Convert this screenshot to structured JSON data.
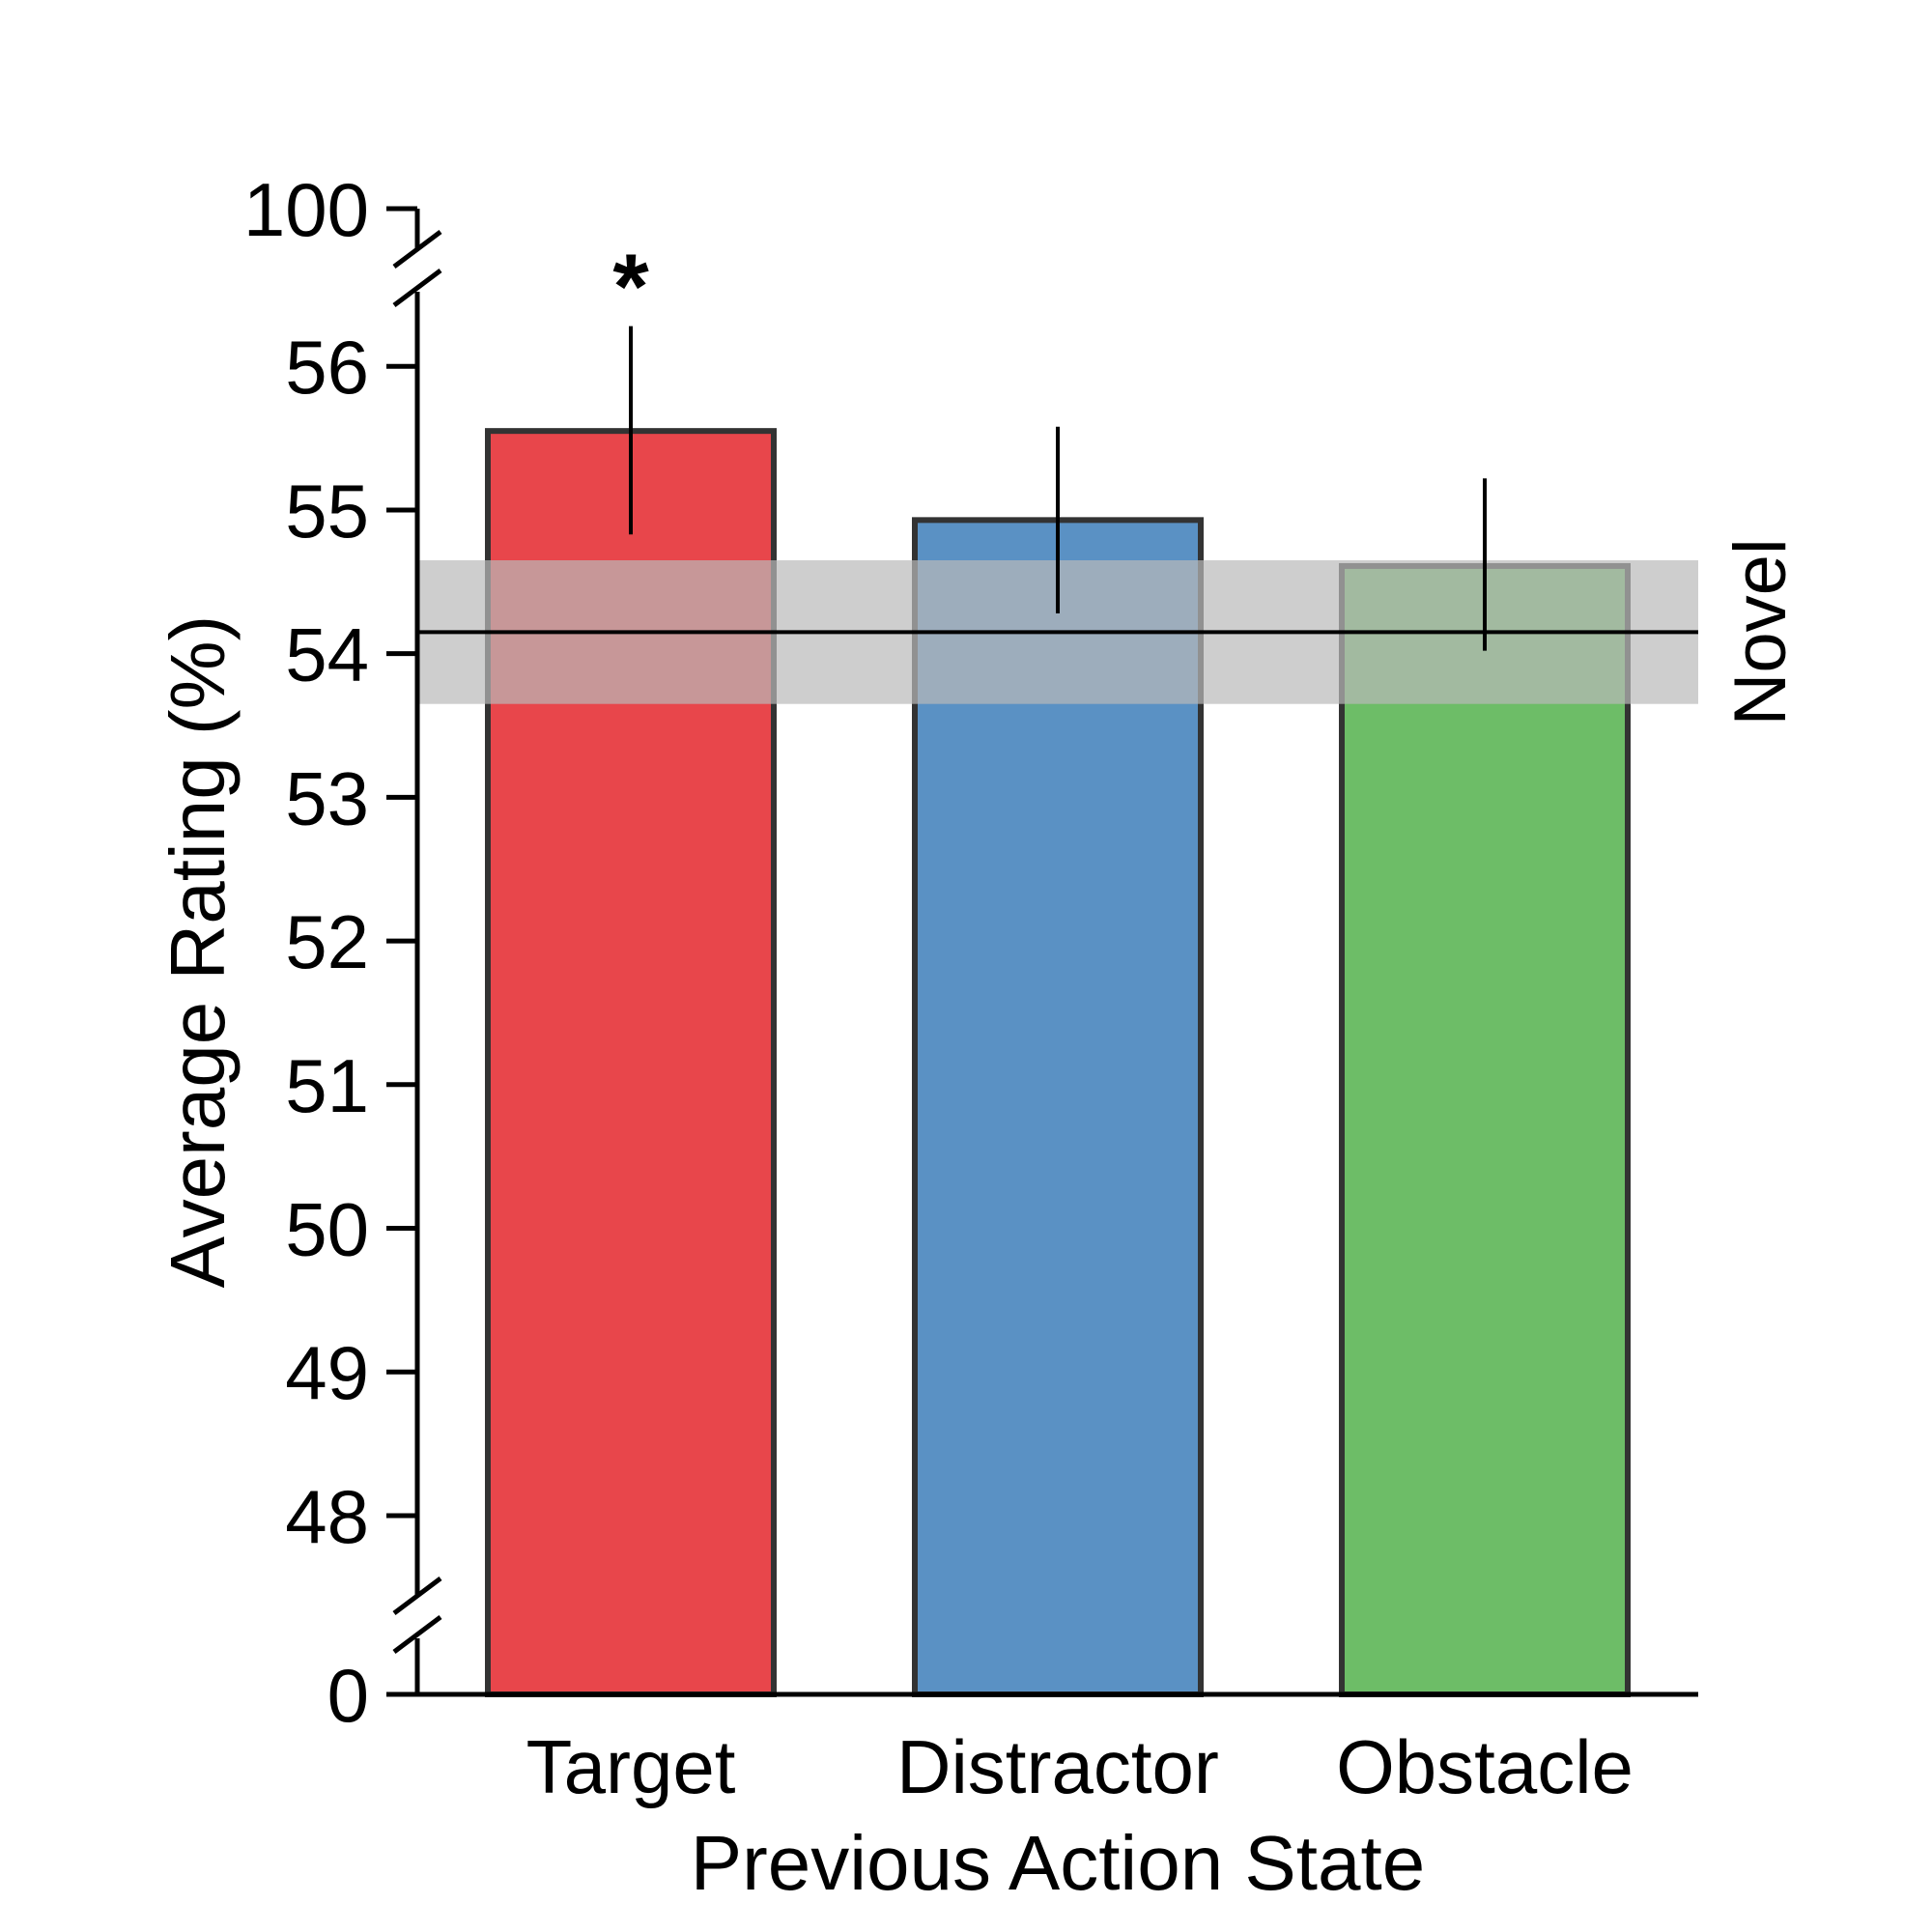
{
  "chart_data": {
    "type": "bar",
    "title": "",
    "xlabel": "Previous Action State",
    "ylabel": "Average Rating (%)",
    "categories": [
      "Target",
      "Distractor",
      "Obstacle"
    ],
    "values": [
      55.55,
      54.93,
      54.61
    ],
    "error_low": [
      54.83,
      54.28,
      54.02
    ],
    "error_high": [
      56.28,
      55.58,
      55.22
    ],
    "colors": [
      "#e8464b",
      "#5a91c4",
      "#6dbd67"
    ],
    "bar_edge_color": "#333333",
    "significance_markers": [
      "*",
      "",
      ""
    ],
    "reference": {
      "label": "Novel",
      "value": 54.15,
      "band": [
        53.65,
        54.65
      ],
      "band_color": "#b9b9b9",
      "line_color": "#000000"
    },
    "ylim": [
      47.65,
      56.6
    ],
    "yticks": [
      48,
      49,
      50,
      51,
      52,
      53,
      54,
      55,
      56
    ],
    "broken_axis": {
      "bottom_label": "0",
      "top_label": "100"
    },
    "grid": false,
    "legend": "none"
  }
}
